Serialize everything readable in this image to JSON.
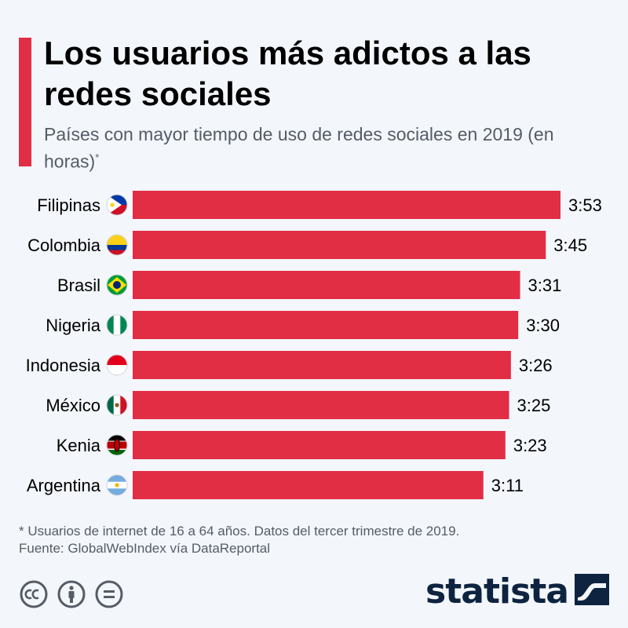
{
  "title": "Los usuarios más adictos a las redes sociales",
  "subtitle": "Países con mayor tiempo de uso de redes sociales en 2019 (en horas)",
  "subtitle_mark": "*",
  "footnote": "* Usuarios de internet de 16 a 64 años. Datos del tercer trimestre de 2019.",
  "source": "Fuente: GlobalWebIndex vía DataReportal",
  "brand": "statista",
  "colors": {
    "accent": "#e12e45",
    "bar": "#e12e45",
    "brand": "#0d2340",
    "icon": "#555c66"
  },
  "icons": [
    "cc-icon",
    "attribution-icon",
    "no-derivatives-icon"
  ],
  "chart_data": {
    "type": "bar",
    "orientation": "horizontal",
    "categories": [
      "Filipinas",
      "Colombia",
      "Brasil",
      "Nigeria",
      "Indonesia",
      "México",
      "Kenia",
      "Argentina"
    ],
    "values": [
      233,
      225,
      211,
      210,
      206,
      205,
      203,
      191
    ],
    "value_labels": [
      "3:53",
      "3:45",
      "3:31",
      "3:30",
      "3:26",
      "3:25",
      "3:23",
      "3:11"
    ],
    "unit": "minutes",
    "flags": [
      "philippines-flag-icon",
      "colombia-flag-icon",
      "brazil-flag-icon",
      "nigeria-flag-icon",
      "indonesia-flag-icon",
      "mexico-flag-icon",
      "kenya-flag-icon",
      "argentina-flag-icon"
    ]
  }
}
